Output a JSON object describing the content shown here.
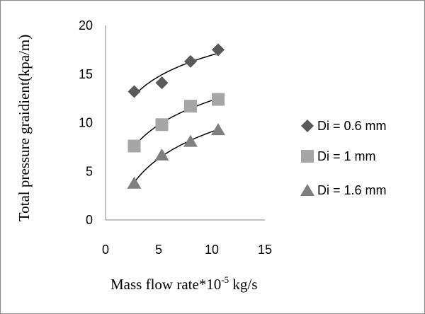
{
  "chart_data": {
    "type": "scatter",
    "title": "",
    "xlabel": "Mass flow rate*10",
    "xlabel_superscript": "-5",
    "xlabel_unit": " kg/s",
    "ylabel": "Total pressure graidient(kpa/m)",
    "xlim": [
      0,
      15
    ],
    "ylim": [
      0,
      20
    ],
    "xticks": [
      "0",
      "5",
      "10",
      "15"
    ],
    "yticks": [
      "0",
      "5",
      "10",
      "15",
      "20"
    ],
    "grid": false,
    "legend_position": "right",
    "trendline": "logarithmic",
    "series": [
      {
        "name": "Di = 0.6 mm",
        "marker": "diamond",
        "color": "#595959",
        "x": [
          2.7,
          5.3,
          8.0,
          10.6
        ],
        "y": [
          13.2,
          14.1,
          16.3,
          17.5
        ]
      },
      {
        "name": "Di = 1 mm",
        "marker": "square",
        "color": "#a6a6a6",
        "x": [
          2.7,
          5.3,
          8.0,
          10.6
        ],
        "y": [
          7.6,
          9.8,
          11.7,
          12.4
        ]
      },
      {
        "name": "Di = 1.6 mm",
        "marker": "triangle",
        "color": "#7f7f7f",
        "x": [
          2.7,
          5.3,
          8.0,
          10.6
        ],
        "y": [
          3.8,
          6.7,
          8.1,
          9.3
        ]
      }
    ]
  }
}
